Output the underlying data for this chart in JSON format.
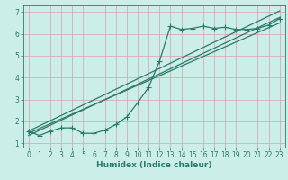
{
  "background_color": "#cceee8",
  "grid_color": "#d8a0a8",
  "line_color": "#2a7a6a",
  "xlabel": "Humidex (Indice chaleur)",
  "xlim": [
    -0.5,
    23.5
  ],
  "ylim": [
    0.8,
    7.3
  ],
  "xticks": [
    0,
    1,
    2,
    3,
    4,
    5,
    6,
    7,
    8,
    9,
    10,
    11,
    12,
    13,
    14,
    15,
    16,
    17,
    18,
    19,
    20,
    21,
    22,
    23
  ],
  "yticks": [
    1,
    2,
    3,
    4,
    5,
    6,
    7
  ],
  "line1_x": [
    0,
    1,
    2,
    3,
    4,
    5,
    6,
    7,
    8,
    9,
    10,
    11,
    12,
    13,
    14,
    15,
    16,
    17,
    18,
    19,
    20,
    21,
    22,
    23
  ],
  "line1_y": [
    1.55,
    1.35,
    1.55,
    1.7,
    1.7,
    1.45,
    1.45,
    1.6,
    1.85,
    2.2,
    2.85,
    3.55,
    4.75,
    6.35,
    6.2,
    6.25,
    6.35,
    6.25,
    6.3,
    6.2,
    6.2,
    6.25,
    6.4,
    6.7
  ],
  "line2_x": [
    0,
    23
  ],
  "line2_y": [
    1.35,
    6.75
  ],
  "line3_x": [
    0,
    23
  ],
  "line3_y": [
    1.45,
    6.5
  ],
  "line4_x": [
    0,
    23
  ],
  "line4_y": [
    1.55,
    7.05
  ],
  "marker": "+",
  "markersize": 4,
  "linewidth": 0.9,
  "tick_fontsize": 5.5,
  "label_fontsize": 6.5
}
